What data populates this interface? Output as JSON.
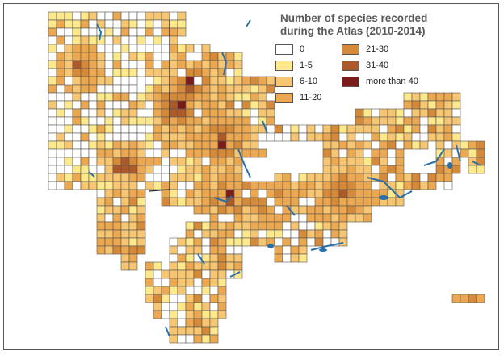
{
  "legend": {
    "title_line1": "Number of species recorded",
    "title_line2": "during the Atlas (2010-2014)",
    "classes": [
      {
        "label": "0",
        "color": "#ffffff"
      },
      {
        "label": "1-5",
        "color": "#fde98c"
      },
      {
        "label": "6-10",
        "color": "#f6c672"
      },
      {
        "label": "11-20",
        "color": "#eba851"
      },
      {
        "label": "21-30",
        "color": "#d58a3a"
      },
      {
        "label": "31-40",
        "color": "#ad5a2a"
      },
      {
        "label": "more than 40",
        "color": "#7a1c1c"
      }
    ]
  },
  "colors": {
    "grid_outline": "#555555",
    "water": "#2a6fa8"
  }
}
